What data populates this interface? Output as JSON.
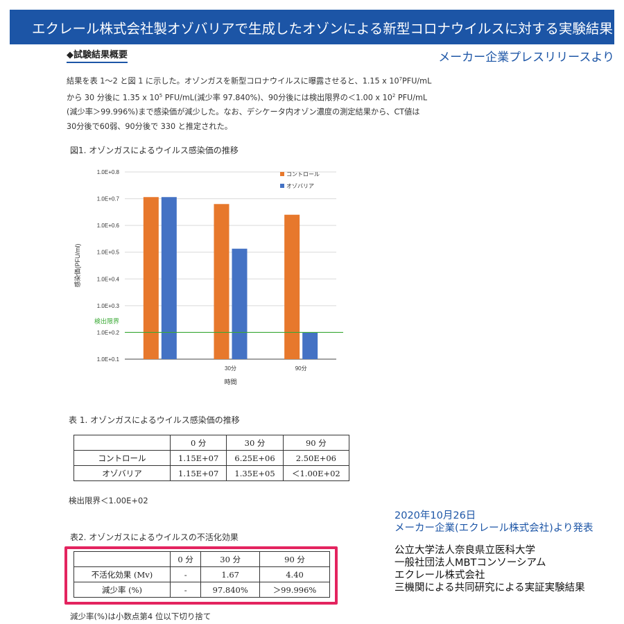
{
  "header": {
    "title": "エクレール株式会社製オゾバリアで生成したオゾンによる新型コロナウイルスに対する実験結果"
  },
  "summary": {
    "heading": "◆試験結果概要",
    "source_note": "メーカー企業プレスリリースより",
    "line1": "結果を表 1〜2 と図 1 に示した。オゾンガスを新型コロナウイルスに曝露させると、1.15 x 10",
    "line1_sup": "7",
    "line1_tail": "PFU/mL",
    "line2": "から 30 分後に 1.35 x 10",
    "line2_sup": "5",
    "line2_tail": " PFU/mL(減少率 97.840%)、90分後には検出限界の＜1.00 x 10",
    "line2_sup2": "2",
    "line2_tail2": " PFU/mL",
    "line3": "(減少率＞99.996%)まで感染価が減少した。なお、デシケータ内オゾン濃度の測定結果から、CT値は",
    "line4": "30分後で60弱、90分後で 330 と推定された。"
  },
  "figure": {
    "caption": "図1. オゾンガスによるウイルス感染価の推移"
  },
  "chart_data": {
    "type": "bar",
    "title": "",
    "xlabel": "時間",
    "ylabel": "感染価(PFU/ml)",
    "categories": [
      "",
      "30分",
      "90分"
    ],
    "ytick_labels": [
      "1.0E+0.1",
      "1.0E+0.2",
      "1.0E+0.3",
      "1.0E+0.4",
      "1.0E+0.5",
      "1.0E+0.6",
      "1.0E+0.7",
      "1.0E+0.8"
    ],
    "ylim": [
      1,
      8
    ],
    "series": [
      {
        "name": "コントロール",
        "color": "#e7782c",
        "values": [
          7.06,
          6.8,
          6.4
        ]
      },
      {
        "name": "オゾバリア",
        "color": "#4472c4",
        "values": [
          7.06,
          5.13,
          2.0
        ]
      }
    ],
    "reference_line": {
      "label": "検出限界",
      "value": 2.0,
      "color": "#3aa935"
    },
    "legend": "top-right",
    "grid": true
  },
  "table1": {
    "caption": "表 1. オゾンガスによるウイルス感染価の推移",
    "headers": [
      "",
      "0 分",
      "30 分",
      "90 分"
    ],
    "rows": [
      [
        "コントロール",
        "1.15E+07",
        "6.25E+06",
        "2.50E+06"
      ],
      [
        "オゾバリア",
        "1.15E+07",
        "1.35E+05",
        "＜1.00E+02"
      ]
    ],
    "note": "検出限界＜1.00E+02"
  },
  "table2": {
    "caption": "表2. オゾンガスによるウイルスの不活化効果",
    "headers": [
      "",
      "0 分",
      "30 分",
      "90 分"
    ],
    "rows": [
      [
        "不活化効果 (Mv)",
        "-",
        "1.67",
        "4.40"
      ],
      [
        "減少率 (%)",
        "-",
        "97.840%",
        "＞99.996%"
      ]
    ],
    "note": "減少率(%)は小数点第4 位以下切り捨て",
    "highlight_color": "#e3245f"
  },
  "announcement": {
    "date": "2020年10月26日",
    "publisher": "メーカー企業(エクレール株式会社)より発表",
    "org1": "公立大学法人奈良県立医科大学",
    "org2": "一般社団法人MBTコンソーシアム",
    "org3": "エクレール株式会社",
    "result": "三機関による共同研究による実証実験結果"
  }
}
